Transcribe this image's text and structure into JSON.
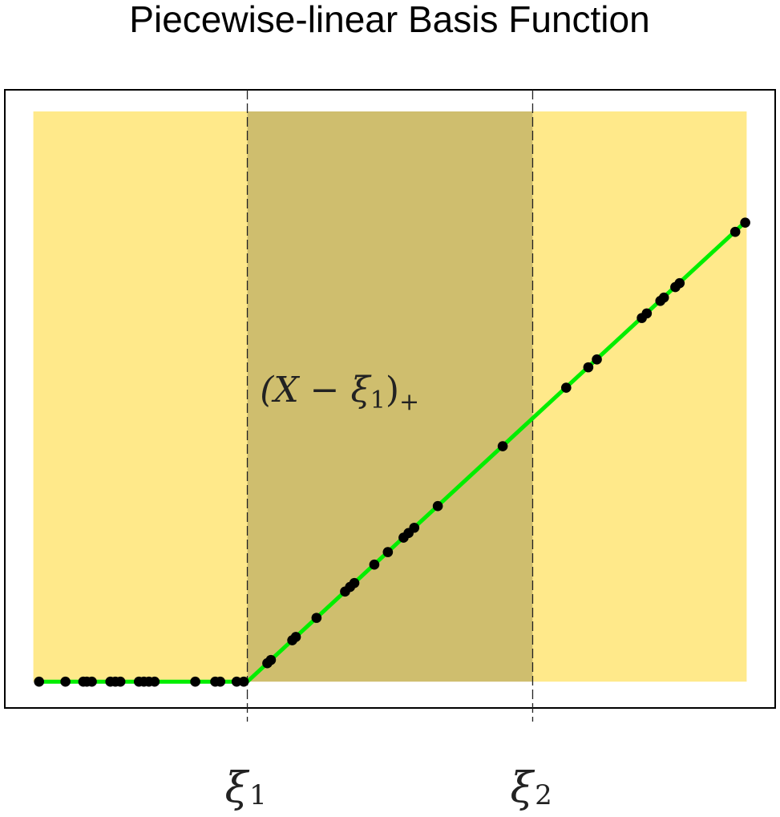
{
  "chart_data": {
    "type": "scatter",
    "title": "Piecewise-linear Basis Function",
    "xlabel": "",
    "ylabel": "",
    "xlim": [
      -0.04,
      1.04
    ],
    "ylim": [
      -0.04,
      0.9
    ],
    "grid": false,
    "knots": [
      {
        "name": "knot-1",
        "label": "ξ",
        "sub": "1",
        "x": 0.3
      },
      {
        "name": "knot-2",
        "label": "ξ",
        "sub": "2",
        "x": 0.7
      }
    ],
    "regions": [
      {
        "name": "region-left",
        "x0": 0.0,
        "x1": 0.3,
        "color": "#ffe98a"
      },
      {
        "name": "region-middle",
        "x0": 0.3,
        "x1": 0.7,
        "color": "#cfbe6e"
      },
      {
        "name": "region-right",
        "x0": 0.7,
        "x1": 1.0,
        "color": "#ffe98a"
      }
    ],
    "annotation": {
      "text": "(X − ξ",
      "sub": "1",
      "tail": ")",
      "sup": "+",
      "x": 0.43,
      "y": 0.45
    },
    "fit_line": {
      "name": "(X − ξ1)+",
      "color": "#00ee00",
      "points": [
        [
          0.008,
          0.0
        ],
        [
          0.3,
          0.0
        ],
        [
          0.998,
          0.699
        ]
      ]
    },
    "points": [
      [
        0.008,
        0.0
      ],
      [
        0.045,
        0.0
      ],
      [
        0.07,
        0.0
      ],
      [
        0.075,
        0.0
      ],
      [
        0.082,
        0.0
      ],
      [
        0.108,
        0.0
      ],
      [
        0.115,
        0.0
      ],
      [
        0.122,
        0.0
      ],
      [
        0.148,
        0.0
      ],
      [
        0.155,
        0.0
      ],
      [
        0.162,
        0.0
      ],
      [
        0.17,
        0.0
      ],
      [
        0.227,
        0.0
      ],
      [
        0.255,
        0.0
      ],
      [
        0.262,
        0.0
      ],
      [
        0.285,
        0.0
      ],
      [
        0.295,
        0.0
      ],
      [
        0.328,
        0.028
      ],
      [
        0.333,
        0.033
      ],
      [
        0.363,
        0.063
      ],
      [
        0.368,
        0.068
      ],
      [
        0.397,
        0.097
      ],
      [
        0.437,
        0.137
      ],
      [
        0.444,
        0.144
      ],
      [
        0.45,
        0.15
      ],
      [
        0.478,
        0.178
      ],
      [
        0.497,
        0.197
      ],
      [
        0.519,
        0.219
      ],
      [
        0.526,
        0.226
      ],
      [
        0.534,
        0.234
      ],
      [
        0.567,
        0.267
      ],
      [
        0.658,
        0.358
      ],
      [
        0.747,
        0.447
      ],
      [
        0.778,
        0.478
      ],
      [
        0.79,
        0.49
      ],
      [
        0.853,
        0.553
      ],
      [
        0.86,
        0.56
      ],
      [
        0.879,
        0.579
      ],
      [
        0.884,
        0.584
      ],
      [
        0.9,
        0.6
      ],
      [
        0.906,
        0.606
      ],
      [
        0.984,
        0.684
      ],
      [
        0.998,
        0.698
      ]
    ]
  }
}
